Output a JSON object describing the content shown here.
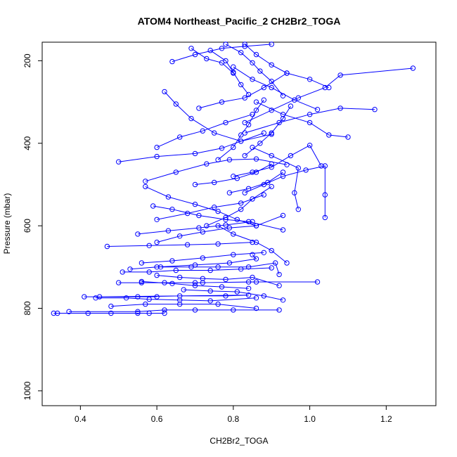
{
  "chart_data": {
    "type": "line",
    "title": "ATOM4 Northeast_Pacific_2 CH2Br2_TOGA",
    "xlabel": "CH2Br2_TOGA",
    "ylabel": "Pressure (mbar)",
    "xlim": [
      0.3,
      1.33
    ],
    "ylim": [
      1036,
      155
    ],
    "y_reversed": true,
    "xticks": [
      0.4,
      0.6,
      0.8,
      1.0,
      1.2
    ],
    "xtick_labels": [
      "0.4",
      "0.6",
      "0.8",
      "1.0",
      "1.2"
    ],
    "yticks": [
      200,
      400,
      600,
      800,
      1000
    ],
    "ytick_labels": [
      "200",
      "400",
      "600",
      "800",
      "1000"
    ],
    "grid": false,
    "legend": "none",
    "marker": "open-circle",
    "colors": {
      "series": "#0000ff",
      "axis": "#000000",
      "background": "#ffffff"
    },
    "series": [
      {
        "points": [
          [
            0.34,
            812
          ],
          [
            0.42,
            812
          ],
          [
            0.55,
            812
          ],
          [
            0.62,
            812
          ],
          [
            0.58,
            812
          ],
          [
            0.48,
            812
          ],
          [
            0.33,
            812
          ]
        ]
      },
      {
        "points": [
          [
            0.37,
            808
          ],
          [
            0.55,
            808
          ],
          [
            0.62,
            804
          ],
          [
            0.7,
            804
          ],
          [
            0.8,
            804
          ],
          [
            0.92,
            804
          ]
        ]
      },
      {
        "points": [
          [
            0.41,
            772
          ],
          [
            0.55,
            772
          ],
          [
            0.66,
            770
          ],
          [
            0.78,
            770
          ],
          [
            0.84,
            768
          ],
          [
            0.45,
            772
          ],
          [
            0.6,
            772
          ]
        ]
      },
      {
        "points": [
          [
            0.5,
            738
          ],
          [
            0.62,
            738
          ],
          [
            0.72,
            738
          ],
          [
            0.84,
            736
          ],
          [
            1.02,
            736
          ],
          [
            0.86,
            736
          ],
          [
            0.7,
            738
          ],
          [
            0.56,
            738
          ]
        ]
      },
      {
        "points": [
          [
            0.51,
            712
          ],
          [
            0.58,
            712
          ],
          [
            0.65,
            708
          ],
          [
            0.74,
            708
          ],
          [
            0.82,
            705
          ],
          [
            0.9,
            702
          ]
        ]
      },
      {
        "points": [
          [
            0.53,
            705
          ],
          [
            0.6,
            700
          ],
          [
            0.7,
            695
          ],
          [
            0.79,
            690
          ],
          [
            0.86,
            680
          ],
          [
            0.85,
            670
          ]
        ]
      },
      {
        "points": [
          [
            0.47,
            650
          ],
          [
            0.58,
            648
          ],
          [
            0.68,
            646
          ],
          [
            0.76,
            644
          ],
          [
            0.85,
            640
          ]
        ]
      },
      {
        "points": [
          [
            0.6,
            640
          ],
          [
            0.66,
            625
          ],
          [
            0.72,
            615
          ],
          [
            0.79,
            605
          ],
          [
            0.86,
            600
          ],
          [
            0.93,
            575
          ]
        ]
      },
      {
        "points": [
          [
            0.59,
            552
          ],
          [
            0.64,
            560
          ],
          [
            0.71,
            575
          ],
          [
            0.78,
            585
          ],
          [
            0.84,
            590
          ],
          [
            0.93,
            610
          ]
        ]
      },
      {
        "points": [
          [
            0.57,
            505
          ],
          [
            0.63,
            530
          ],
          [
            0.7,
            548
          ],
          [
            0.76,
            565
          ],
          [
            0.81,
            585
          ],
          [
            0.86,
            600
          ]
        ]
      },
      {
        "points": [
          [
            0.5,
            445
          ],
          [
            0.6,
            432
          ],
          [
            0.7,
            425
          ],
          [
            0.77,
            412
          ],
          [
            0.82,
            395
          ],
          [
            0.9,
            378
          ]
        ]
      },
      {
        "points": [
          [
            0.57,
            492
          ],
          [
            0.65,
            470
          ],
          [
            0.73,
            450
          ],
          [
            0.79,
            440
          ],
          [
            0.86,
            438
          ],
          [
            0.94,
            452
          ]
        ]
      },
      {
        "points": [
          [
            0.6,
            410
          ],
          [
            0.66,
            385
          ],
          [
            0.72,
            370
          ],
          [
            0.78,
            350
          ],
          [
            0.85,
            330
          ]
        ]
      },
      {
        "points": [
          [
            0.62,
            275
          ],
          [
            0.65,
            305
          ],
          [
            0.69,
            340
          ],
          [
            0.75,
            375
          ],
          [
            0.82,
            395
          ],
          [
            0.88,
            375
          ]
        ]
      },
      {
        "points": [
          [
            0.64,
            202
          ],
          [
            0.7,
            185
          ],
          [
            0.77,
            170
          ],
          [
            0.83,
            165
          ],
          [
            0.9,
            160
          ]
        ]
      },
      {
        "points": [
          [
            0.71,
            315
          ],
          [
            0.77,
            300
          ],
          [
            0.83,
            290
          ],
          [
            0.88,
            265
          ],
          [
            0.94,
            230
          ]
        ]
      },
      {
        "points": [
          [
            0.8,
            215
          ],
          [
            0.85,
            245
          ],
          [
            0.9,
            265
          ],
          [
            0.96,
            295
          ],
          [
            1.02,
            318
          ]
        ]
      },
      {
        "points": [
          [
            0.86,
            300
          ],
          [
            0.93,
            330
          ],
          [
            1.0,
            350
          ],
          [
            1.05,
            380
          ],
          [
            1.1,
            385
          ]
        ]
      },
      {
        "points": [
          [
            0.83,
            375
          ],
          [
            0.92,
            350
          ],
          [
            1.0,
            330
          ],
          [
            1.08,
            315
          ],
          [
            1.17,
            318
          ]
        ]
      },
      {
        "points": [
          [
            0.83,
            350
          ],
          [
            0.9,
            320
          ],
          [
            0.97,
            290
          ],
          [
            1.04,
            265
          ],
          [
            1.08,
            235
          ],
          [
            1.27,
            218
          ]
        ]
      },
      {
        "points": [
          [
            0.8,
            480
          ],
          [
            0.85,
            470
          ],
          [
            0.9,
            458
          ],
          [
            0.95,
            430
          ],
          [
            1.0,
            405
          ],
          [
            1.03,
            455
          ]
        ]
      },
      {
        "points": [
          [
            0.83,
            520
          ],
          [
            0.88,
            500
          ],
          [
            0.93,
            480
          ],
          [
            0.99,
            465
          ],
          [
            1.04,
            455
          ],
          [
            1.04,
            525
          ],
          [
            1.04,
            580
          ]
        ]
      },
      {
        "points": [
          [
            0.85,
            410
          ],
          [
            0.9,
            430
          ],
          [
            0.97,
            460
          ],
          [
            0.96,
            520
          ],
          [
            0.97,
            560
          ]
        ]
      },
      {
        "points": [
          [
            0.83,
            160
          ],
          [
            0.86,
            185
          ],
          [
            0.9,
            210
          ],
          [
            0.94,
            230
          ],
          [
            1.0,
            245
          ],
          [
            1.05,
            265
          ]
        ]
      },
      {
        "points": [
          [
            0.78,
            160
          ],
          [
            0.82,
            180
          ],
          [
            0.85,
            205
          ],
          [
            0.87,
            225
          ],
          [
            0.9,
            250
          ],
          [
            0.93,
            285
          ]
        ]
      },
      {
        "points": [
          [
            0.74,
            175
          ],
          [
            0.78,
            200
          ],
          [
            0.8,
            228
          ],
          [
            0.82,
            258
          ],
          [
            0.84,
            282
          ]
        ]
      },
      {
        "points": [
          [
            0.69,
            170
          ],
          [
            0.73,
            195
          ],
          [
            0.77,
            205
          ],
          [
            0.8,
            230
          ]
        ]
      },
      {
        "points": [
          [
            0.83,
            430
          ],
          [
            0.87,
            400
          ],
          [
            0.9,
            375
          ],
          [
            0.93,
            340
          ],
          [
            0.95,
            310
          ]
        ]
      },
      {
        "points": [
          [
            0.76,
            440
          ],
          [
            0.8,
            410
          ],
          [
            0.82,
            380
          ],
          [
            0.84,
            355
          ],
          [
            0.86,
            320
          ],
          [
            0.88,
            295
          ]
        ]
      },
      {
        "points": [
          [
            0.73,
            600
          ],
          [
            0.78,
            580
          ],
          [
            0.82,
            560
          ],
          [
            0.85,
            535
          ],
          [
            0.9,
            505
          ]
        ]
      },
      {
        "points": [
          [
            0.6,
            585
          ],
          [
            0.68,
            570
          ],
          [
            0.75,
            555
          ],
          [
            0.82,
            545
          ],
          [
            0.88,
            525
          ]
        ]
      },
      {
        "points": [
          [
            0.55,
            620
          ],
          [
            0.63,
            612
          ],
          [
            0.71,
            605
          ],
          [
            0.78,
            598
          ],
          [
            0.85,
            590
          ]
        ]
      },
      {
        "points": [
          [
            0.56,
            690
          ],
          [
            0.64,
            685
          ],
          [
            0.72,
            678
          ],
          [
            0.8,
            670
          ],
          [
            0.88,
            665
          ]
        ]
      },
      {
        "points": [
          [
            0.61,
            700
          ],
          [
            0.69,
            700
          ],
          [
            0.76,
            700
          ],
          [
            0.84,
            700
          ],
          [
            0.91,
            690
          ],
          [
            0.92,
            718
          ]
        ]
      },
      {
        "points": [
          [
            0.6,
            720
          ],
          [
            0.66,
            725
          ],
          [
            0.72,
            728
          ],
          [
            0.78,
            730
          ],
          [
            0.85,
            725
          ],
          [
            0.92,
            745
          ]
        ]
      },
      {
        "points": [
          [
            0.67,
            755
          ],
          [
            0.74,
            758
          ],
          [
            0.81,
            760
          ],
          [
            0.88,
            770
          ],
          [
            0.93,
            780
          ]
        ]
      },
      {
        "points": [
          [
            0.56,
            735
          ],
          [
            0.64,
            740
          ],
          [
            0.7,
            745
          ],
          [
            0.77,
            748
          ],
          [
            0.84,
            752
          ]
        ]
      },
      {
        "points": [
          [
            0.44,
            775
          ],
          [
            0.52,
            775
          ],
          [
            0.58,
            778
          ],
          [
            0.66,
            780
          ],
          [
            0.74,
            782
          ],
          [
            0.86,
            775
          ]
        ]
      },
      {
        "points": [
          [
            0.48,
            795
          ],
          [
            0.57,
            790
          ],
          [
            0.66,
            790
          ],
          [
            0.76,
            790
          ],
          [
            0.86,
            800
          ]
        ]
      },
      {
        "points": [
          [
            0.7,
            500
          ],
          [
            0.75,
            495
          ],
          [
            0.81,
            485
          ],
          [
            0.86,
            470
          ],
          [
            0.9,
            450
          ]
        ]
      },
      {
        "points": [
          [
            0.79,
            520
          ],
          [
            0.84,
            510
          ],
          [
            0.89,
            495
          ],
          [
            0.93,
            470
          ]
        ]
      },
      {
        "points": [
          [
            0.76,
            600
          ],
          [
            0.8,
            620
          ],
          [
            0.86,
            640
          ],
          [
            0.9,
            660
          ],
          [
            0.94,
            690
          ]
        ]
      }
    ]
  }
}
